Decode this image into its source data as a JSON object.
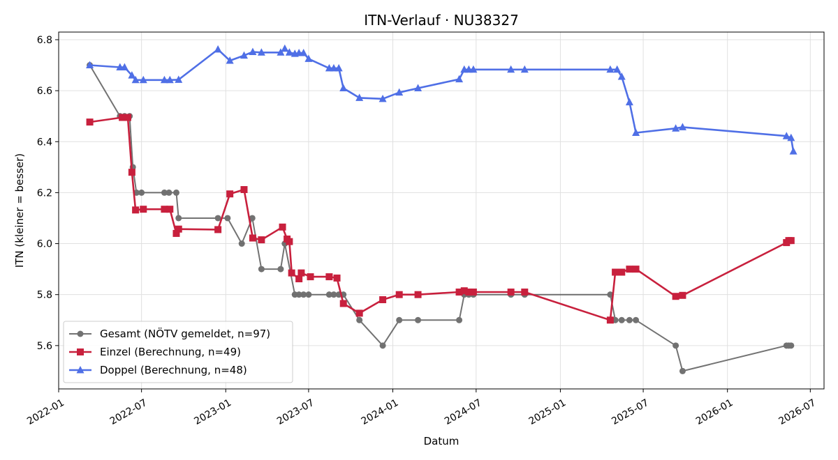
{
  "chart_data": {
    "type": "line",
    "title": "ITN-Verlauf · NU38327",
    "xlabel": "Datum",
    "ylabel": "ITN  (kleiner = besser)",
    "xlim": [
      "2022-01-01",
      "2026-07-31"
    ],
    "ylim": [
      5.43,
      6.83
    ],
    "x_ticks": [
      "2022-01",
      "2022-07",
      "2023-01",
      "2023-07",
      "2024-01",
      "2024-07",
      "2025-01",
      "2025-07",
      "2026-01",
      "2026-07"
    ],
    "y_ticks": [
      "5.6",
      "5.8",
      "6.0",
      "6.2",
      "6.4",
      "6.6",
      "6.8"
    ],
    "grid": true,
    "legend_position": "lower-left",
    "series": [
      {
        "name": "Gesamt (NÖTV gemeldet, n=97)",
        "color": "#444444",
        "marker": "circle",
        "points": [
          [
            "2022-03-10",
            6.7
          ],
          [
            "2022-05-15",
            6.5
          ],
          [
            "2022-05-25",
            6.5
          ],
          [
            "2022-06-05",
            6.5
          ],
          [
            "2022-06-12",
            6.3
          ],
          [
            "2022-06-20",
            6.2
          ],
          [
            "2022-07-01",
            6.2
          ],
          [
            "2022-08-20",
            6.2
          ],
          [
            "2022-08-30",
            6.2
          ],
          [
            "2022-09-15",
            6.2
          ],
          [
            "2022-09-20",
            6.1
          ],
          [
            "2022-12-15",
            6.1
          ],
          [
            "2023-01-05",
            6.1
          ],
          [
            "2023-02-05",
            6.0
          ],
          [
            "2023-02-28",
            6.1
          ],
          [
            "2023-03-20",
            5.9
          ],
          [
            "2023-05-01",
            5.9
          ],
          [
            "2023-05-10",
            6.0
          ],
          [
            "2023-06-01",
            5.8
          ],
          [
            "2023-06-10",
            5.8
          ],
          [
            "2023-06-20",
            5.8
          ],
          [
            "2023-07-01",
            5.8
          ],
          [
            "2023-08-15",
            5.8
          ],
          [
            "2023-08-25",
            5.8
          ],
          [
            "2023-09-05",
            5.8
          ],
          [
            "2023-09-15",
            5.8
          ],
          [
            "2023-10-20",
            5.7
          ],
          [
            "2023-12-10",
            5.6
          ],
          [
            "2024-01-15",
            5.7
          ],
          [
            "2024-02-25",
            5.7
          ],
          [
            "2024-05-25",
            5.7
          ],
          [
            "2024-06-05",
            5.8
          ],
          [
            "2024-06-15",
            5.8
          ],
          [
            "2024-06-25",
            5.8
          ],
          [
            "2024-09-15",
            5.8
          ],
          [
            "2024-10-15",
            5.8
          ],
          [
            "2025-04-20",
            5.8
          ],
          [
            "2025-05-01",
            5.7
          ],
          [
            "2025-05-15",
            5.7
          ],
          [
            "2025-06-01",
            5.7
          ],
          [
            "2025-06-15",
            5.7
          ],
          [
            "2025-09-10",
            5.6
          ],
          [
            "2025-09-25",
            5.5
          ],
          [
            "2026-05-10",
            5.6
          ],
          [
            "2026-05-15",
            5.6
          ],
          [
            "2026-05-20",
            5.6
          ]
        ]
      },
      {
        "name": "Einzel (Berechnung, n=49)",
        "color": "#c8203d",
        "marker": "square",
        "points": [
          [
            "2022-03-10",
            6.477
          ],
          [
            "2022-05-20",
            6.495
          ],
          [
            "2022-06-01",
            6.495
          ],
          [
            "2022-06-10",
            6.28
          ],
          [
            "2022-06-18",
            6.132
          ],
          [
            "2022-07-05",
            6.135
          ],
          [
            "2022-08-20",
            6.135
          ],
          [
            "2022-09-01",
            6.135
          ],
          [
            "2022-09-15",
            6.04
          ],
          [
            "2022-09-20",
            6.057
          ],
          [
            "2022-12-15",
            6.055
          ],
          [
            "2023-01-10",
            6.195
          ],
          [
            "2023-02-10",
            6.212
          ],
          [
            "2023-03-01",
            6.022
          ],
          [
            "2023-03-20",
            6.015
          ],
          [
            "2023-05-05",
            6.065
          ],
          [
            "2023-05-15",
            6.018
          ],
          [
            "2023-05-20",
            6.008
          ],
          [
            "2023-05-25",
            5.885
          ],
          [
            "2023-06-10",
            5.862
          ],
          [
            "2023-06-15",
            5.885
          ],
          [
            "2023-07-05",
            5.87
          ],
          [
            "2023-08-15",
            5.87
          ],
          [
            "2023-09-01",
            5.865
          ],
          [
            "2023-09-15",
            5.765
          ],
          [
            "2023-10-20",
            5.727
          ],
          [
            "2023-12-10",
            5.78
          ],
          [
            "2024-01-15",
            5.8
          ],
          [
            "2024-02-25",
            5.8
          ],
          [
            "2024-05-25",
            5.81
          ],
          [
            "2024-06-05",
            5.815
          ],
          [
            "2024-06-15",
            5.81
          ],
          [
            "2024-06-25",
            5.81
          ],
          [
            "2024-09-15",
            5.81
          ],
          [
            "2024-10-15",
            5.81
          ],
          [
            "2025-04-20",
            5.7
          ],
          [
            "2025-05-01",
            5.888
          ],
          [
            "2025-05-15",
            5.888
          ],
          [
            "2025-06-01",
            5.9
          ],
          [
            "2025-06-15",
            5.9
          ],
          [
            "2025-09-10",
            5.793
          ],
          [
            "2025-09-25",
            5.797
          ],
          [
            "2026-05-10",
            6.004
          ],
          [
            "2026-05-15",
            6.012
          ],
          [
            "2026-05-20",
            6.012
          ]
        ]
      },
      {
        "name": "Doppel (Berechnung, n=48)",
        "color": "#4f6fe6",
        "marker": "triangle",
        "points": [
          [
            "2022-03-10",
            6.7
          ],
          [
            "2022-05-15",
            6.692
          ],
          [
            "2022-05-25",
            6.692
          ],
          [
            "2022-06-10",
            6.66
          ],
          [
            "2022-06-18",
            6.642
          ],
          [
            "2022-07-05",
            6.642
          ],
          [
            "2022-08-20",
            6.642
          ],
          [
            "2022-09-01",
            6.642
          ],
          [
            "2022-09-20",
            6.643
          ],
          [
            "2022-12-15",
            6.762
          ],
          [
            "2023-01-10",
            6.718
          ],
          [
            "2023-02-10",
            6.738
          ],
          [
            "2023-03-01",
            6.752
          ],
          [
            "2023-03-20",
            6.75
          ],
          [
            "2023-05-01",
            6.75
          ],
          [
            "2023-05-10",
            6.765
          ],
          [
            "2023-05-20",
            6.75
          ],
          [
            "2023-06-01",
            6.745
          ],
          [
            "2023-06-10",
            6.748
          ],
          [
            "2023-06-20",
            6.748
          ],
          [
            "2023-07-01",
            6.725
          ],
          [
            "2023-08-15",
            6.688
          ],
          [
            "2023-08-25",
            6.688
          ],
          [
            "2023-09-05",
            6.688
          ],
          [
            "2023-09-15",
            6.61
          ],
          [
            "2023-10-20",
            6.572
          ],
          [
            "2023-12-10",
            6.568
          ],
          [
            "2024-01-15",
            6.593
          ],
          [
            "2024-02-25",
            6.61
          ],
          [
            "2024-05-25",
            6.645
          ],
          [
            "2024-06-05",
            6.683
          ],
          [
            "2024-06-15",
            6.683
          ],
          [
            "2024-06-25",
            6.683
          ],
          [
            "2024-09-15",
            6.683
          ],
          [
            "2024-10-15",
            6.683
          ],
          [
            "2025-04-20",
            6.683
          ],
          [
            "2025-05-05",
            6.683
          ],
          [
            "2025-05-15",
            6.655
          ],
          [
            "2025-06-01",
            6.555
          ],
          [
            "2025-06-15",
            6.435
          ],
          [
            "2025-09-10",
            6.452
          ],
          [
            "2025-09-25",
            6.457
          ],
          [
            "2026-05-10",
            6.422
          ],
          [
            "2026-05-20",
            6.415
          ],
          [
            "2026-05-25",
            6.362
          ]
        ]
      }
    ]
  }
}
